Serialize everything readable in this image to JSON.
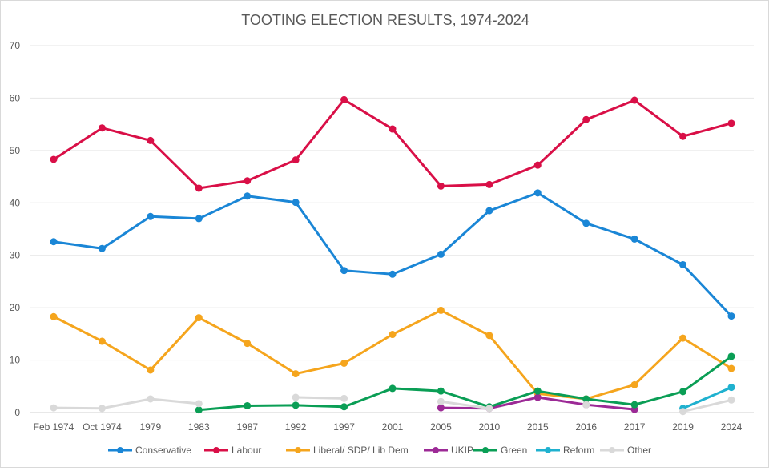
{
  "chart_data": {
    "type": "line",
    "title": "TOOTING ELECTION RESULTS, 1974-2024",
    "xlabel": "",
    "ylabel": "",
    "ylim": [
      0,
      70
    ],
    "yticks": [
      0,
      10,
      20,
      30,
      40,
      50,
      60,
      70
    ],
    "grid": true,
    "legend_position": "bottom",
    "categories": [
      "Feb 1974",
      "Oct 1974",
      "1979",
      "1983",
      "1987",
      "1992",
      "1997",
      "2001",
      "2005",
      "2010",
      "2015",
      "2016",
      "2017",
      "2019",
      "2024"
    ],
    "series": [
      {
        "name": "Conservative",
        "color": "#1a86d6",
        "values": [
          32.6,
          31.3,
          37.4,
          37.0,
          41.3,
          40.1,
          27.1,
          26.4,
          30.2,
          38.5,
          41.9,
          36.1,
          33.1,
          28.2,
          18.4
        ]
      },
      {
        "name": "Labour",
        "color": "#d90f47",
        "values": [
          48.3,
          54.3,
          51.9,
          42.8,
          44.2,
          48.2,
          59.7,
          54.1,
          43.2,
          43.5,
          47.2,
          55.9,
          59.6,
          52.7,
          55.2
        ]
      },
      {
        "name": "Liberal/ SDP/ Lib  Dem",
        "color": "#f5a51d",
        "values": [
          18.3,
          13.6,
          8.1,
          18.1,
          13.2,
          7.4,
          9.4,
          14.9,
          19.5,
          14.7,
          3.6,
          2.6,
          5.3,
          14.2,
          8.4
        ]
      },
      {
        "name": "UKIP",
        "color": "#9c2a96",
        "values": [
          null,
          null,
          null,
          null,
          null,
          null,
          null,
          null,
          0.9,
          0.8,
          2.9,
          1.5,
          0.6,
          null,
          null
        ]
      },
      {
        "name": "Green",
        "color": "#0a9e55",
        "values": [
          null,
          null,
          null,
          0.5,
          1.3,
          1.4,
          1.1,
          4.6,
          4.1,
          1.1,
          4.1,
          2.6,
          1.5,
          4.0,
          10.7
        ]
      },
      {
        "name": "Reform",
        "color": "#1fb1cf",
        "values": [
          null,
          null,
          null,
          null,
          null,
          null,
          null,
          null,
          null,
          null,
          null,
          null,
          null,
          0.8,
          4.8
        ]
      },
      {
        "name": "Other",
        "color": "#d9d9d9",
        "values": [
          0.9,
          0.8,
          2.6,
          1.7,
          null,
          2.9,
          2.7,
          null,
          2.1,
          0.8,
          null,
          1.5,
          null,
          0.2,
          2.4
        ]
      }
    ]
  }
}
